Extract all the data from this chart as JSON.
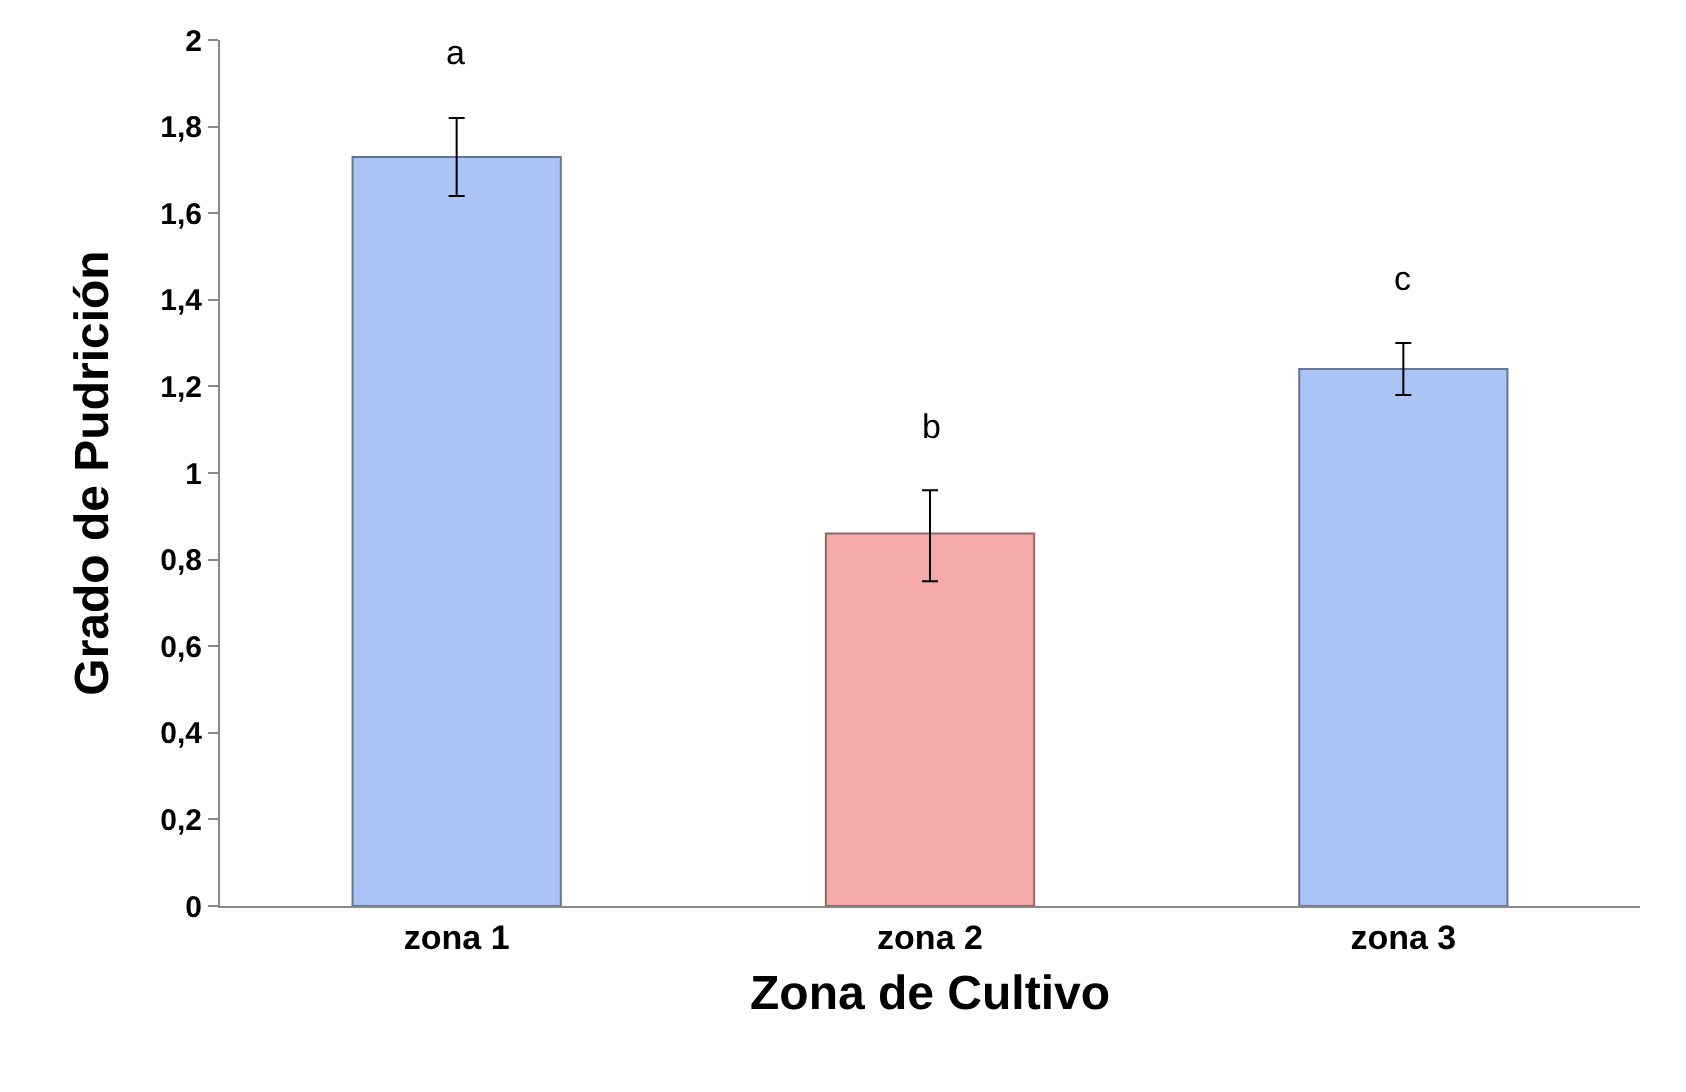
{
  "chart_data": {
    "type": "bar",
    "xlabel": "Zona de Cultivo",
    "ylabel": "Grado de Pudrición",
    "categories": [
      "zona 1",
      "zona 2",
      "zona 3"
    ],
    "values": [
      1.73,
      0.86,
      1.24
    ],
    "colors": [
      "#a9c4f5",
      "#f5a9a9",
      "#a9c4f5"
    ],
    "errors": [
      [
        1.64,
        1.82
      ],
      [
        0.75,
        0.96
      ],
      [
        1.18,
        1.3
      ]
    ],
    "ylim": [
      0,
      2
    ],
    "yticks": [
      0,
      {
        "value": 0.2,
        "label": "0,2"
      },
      {
        "value": 0.4,
        "label": "0,4"
      },
      {
        "value": 0.6,
        "label": "0,6"
      },
      {
        "value": 0.8,
        "label": "0,8"
      },
      1,
      {
        "value": 1.2,
        "label": "1,2"
      },
      {
        "value": 1.4,
        "label": "1,4"
      },
      {
        "value": 1.6,
        "label": "1,6"
      },
      {
        "value": 1.8,
        "label": "1,8"
      },
      2
    ],
    "annotations": [
      "a",
      "b",
      "c"
    ],
    "grid": false
  }
}
